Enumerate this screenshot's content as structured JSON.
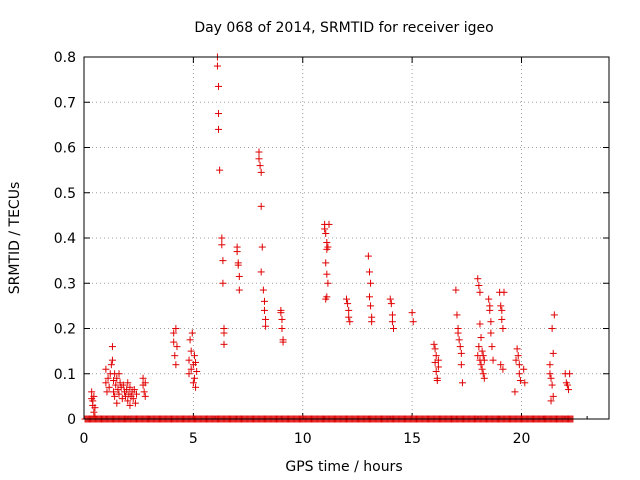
{
  "chart_data": {
    "type": "scatter",
    "title": "Day 068 of 2014, SRMTID for receiver igeo",
    "xlabel": "GPS time / hours",
    "ylabel": "SRMTID / TECUs",
    "xlim": [
      0,
      24
    ],
    "ylim": [
      0,
      0.8
    ],
    "xticks": [
      0,
      5,
      10,
      15,
      20
    ],
    "yticks": [
      0,
      0.1,
      0.2,
      0.3,
      0.4,
      0.5,
      0.6,
      0.7,
      0.8
    ],
    "xtick_labels": [
      "0",
      "5",
      "10",
      "15",
      "20"
    ],
    "ytick_labels": [
      "0",
      "0.1",
      "0.2",
      "0.3",
      "0.4",
      "0.5",
      "0.6",
      "0.7",
      "0.8"
    ],
    "grid": true,
    "marker": "+",
    "color": "#e00000",
    "series": [
      {
        "name": "SRMTID",
        "points": [
          [
            0.35,
            0.06
          ],
          [
            0.35,
            0.045
          ],
          [
            0.4,
            0.03
          ],
          [
            0.45,
            0.015
          ],
          [
            0.4,
            0.04
          ],
          [
            0.5,
            0.025
          ],
          [
            0.5,
            0.005
          ],
          [
            0.45,
            0.05
          ],
          [
            1.0,
            0.11
          ],
          [
            1.0,
            0.08
          ],
          [
            1.05,
            0.06
          ],
          [
            1.1,
            0.09
          ],
          [
            1.15,
            0.07
          ],
          [
            1.2,
            0.1
          ],
          [
            1.25,
            0.12
          ],
          [
            1.3,
            0.16
          ],
          [
            1.3,
            0.13
          ],
          [
            1.35,
            0.085
          ],
          [
            1.35,
            0.06
          ],
          [
            1.4,
            0.1
          ],
          [
            1.4,
            0.05
          ],
          [
            1.45,
            0.075
          ],
          [
            1.5,
            0.09
          ],
          [
            1.5,
            0.035
          ],
          [
            1.55,
            0.065
          ],
          [
            1.6,
            0.1
          ],
          [
            1.6,
            0.055
          ],
          [
            1.65,
            0.08
          ],
          [
            1.7,
            0.07
          ],
          [
            1.75,
            0.045
          ],
          [
            1.8,
            0.075
          ],
          [
            1.85,
            0.06
          ],
          [
            1.9,
            0.05
          ],
          [
            1.95,
            0.065
          ],
          [
            2.0,
            0.04
          ],
          [
            2.0,
            0.08
          ],
          [
            2.05,
            0.055
          ],
          [
            2.1,
            0.07
          ],
          [
            2.1,
            0.03
          ],
          [
            2.15,
            0.05
          ],
          [
            2.2,
            0.06
          ],
          [
            2.25,
            0.045
          ],
          [
            2.3,
            0.065
          ],
          [
            2.35,
            0.035
          ],
          [
            2.4,
            0.055
          ],
          [
            2.7,
            0.09
          ],
          [
            2.7,
            0.075
          ],
          [
            2.75,
            0.06
          ],
          [
            2.8,
            0.08
          ],
          [
            2.8,
            0.05
          ],
          [
            4.1,
            0.19
          ],
          [
            4.1,
            0.17
          ],
          [
            4.15,
            0.14
          ],
          [
            4.2,
            0.2
          ],
          [
            4.2,
            0.12
          ],
          [
            4.25,
            0.16
          ],
          [
            4.8,
            0.13
          ],
          [
            4.8,
            0.1
          ],
          [
            4.85,
            0.175
          ],
          [
            4.9,
            0.15
          ],
          [
            4.9,
            0.11
          ],
          [
            4.95,
            0.19
          ],
          [
            5.0,
            0.12
          ],
          [
            5.0,
            0.08
          ],
          [
            5.05,
            0.14
          ],
          [
            5.05,
            0.09
          ],
          [
            5.1,
            0.125
          ],
          [
            5.1,
            0.07
          ],
          [
            5.15,
            0.105
          ],
          [
            6.1,
            0.8
          ],
          [
            6.1,
            0.78
          ],
          [
            6.15,
            0.735
          ],
          [
            6.15,
            0.675
          ],
          [
            6.15,
            0.64
          ],
          [
            6.2,
            0.55
          ],
          [
            6.3,
            0.4
          ],
          [
            6.3,
            0.385
          ],
          [
            6.35,
            0.35
          ],
          [
            6.35,
            0.3
          ],
          [
            6.4,
            0.2
          ],
          [
            6.4,
            0.19
          ],
          [
            6.4,
            0.165
          ],
          [
            7.0,
            0.38
          ],
          [
            7.0,
            0.37
          ],
          [
            7.05,
            0.345
          ],
          [
            7.05,
            0.34
          ],
          [
            7.1,
            0.315
          ],
          [
            7.1,
            0.285
          ],
          [
            8.0,
            0.59
          ],
          [
            8.0,
            0.575
          ],
          [
            8.05,
            0.56
          ],
          [
            8.1,
            0.545
          ],
          [
            8.1,
            0.47
          ],
          [
            8.15,
            0.38
          ],
          [
            8.1,
            0.325
          ],
          [
            8.2,
            0.285
          ],
          [
            8.25,
            0.26
          ],
          [
            8.25,
            0.24
          ],
          [
            8.3,
            0.22
          ],
          [
            8.3,
            0.205
          ],
          [
            9.0,
            0.24
          ],
          [
            9.0,
            0.235
          ],
          [
            9.05,
            0.22
          ],
          [
            9.05,
            0.2
          ],
          [
            9.1,
            0.175
          ],
          [
            9.1,
            0.17
          ],
          [
            11.0,
            0.43
          ],
          [
            11.0,
            0.42
          ],
          [
            11.05,
            0.41
          ],
          [
            11.1,
            0.39
          ],
          [
            11.1,
            0.375
          ],
          [
            11.15,
            0.38
          ],
          [
            11.05,
            0.345
          ],
          [
            11.1,
            0.32
          ],
          [
            11.15,
            0.3
          ],
          [
            11.1,
            0.27
          ],
          [
            11.05,
            0.265
          ],
          [
            11.2,
            0.43
          ],
          [
            12.0,
            0.265
          ],
          [
            12.05,
            0.255
          ],
          [
            12.1,
            0.24
          ],
          [
            12.1,
            0.225
          ],
          [
            12.15,
            0.215
          ],
          [
            13.0,
            0.36
          ],
          [
            13.05,
            0.325
          ],
          [
            13.1,
            0.3
          ],
          [
            13.05,
            0.27
          ],
          [
            13.1,
            0.25
          ],
          [
            13.15,
            0.225
          ],
          [
            13.15,
            0.215
          ],
          [
            14.0,
            0.265
          ],
          [
            14.05,
            0.255
          ],
          [
            14.1,
            0.23
          ],
          [
            14.1,
            0.215
          ],
          [
            14.15,
            0.2
          ],
          [
            15.0,
            0.235
          ],
          [
            15.05,
            0.215
          ],
          [
            16.0,
            0.165
          ],
          [
            16.05,
            0.155
          ],
          [
            16.1,
            0.14
          ],
          [
            16.05,
            0.125
          ],
          [
            16.1,
            0.105
          ],
          [
            16.15,
            0.09
          ],
          [
            16.15,
            0.085
          ],
          [
            16.2,
            0.13
          ],
          [
            16.2,
            0.115
          ],
          [
            17.0,
            0.285
          ],
          [
            17.05,
            0.23
          ],
          [
            17.1,
            0.2
          ],
          [
            17.1,
            0.19
          ],
          [
            17.15,
            0.175
          ],
          [
            17.2,
            0.16
          ],
          [
            17.25,
            0.145
          ],
          [
            17.25,
            0.12
          ],
          [
            17.3,
            0.08
          ],
          [
            18.0,
            0.31
          ],
          [
            18.05,
            0.295
          ],
          [
            18.1,
            0.28
          ],
          [
            18.1,
            0.21
          ],
          [
            18.15,
            0.18
          ],
          [
            18.05,
            0.16
          ],
          [
            18.2,
            0.15
          ],
          [
            18.0,
            0.14
          ],
          [
            18.1,
            0.13
          ],
          [
            18.15,
            0.12
          ],
          [
            18.2,
            0.11
          ],
          [
            18.25,
            0.1
          ],
          [
            18.3,
            0.09
          ],
          [
            18.3,
            0.13
          ],
          [
            18.25,
            0.14
          ],
          [
            18.5,
            0.265
          ],
          [
            18.55,
            0.25
          ],
          [
            18.55,
            0.24
          ],
          [
            18.6,
            0.215
          ],
          [
            18.6,
            0.19
          ],
          [
            18.65,
            0.16
          ],
          [
            18.7,
            0.13
          ],
          [
            19.0,
            0.28
          ],
          [
            19.05,
            0.25
          ],
          [
            19.1,
            0.24
          ],
          [
            19.1,
            0.22
          ],
          [
            19.15,
            0.2
          ],
          [
            19.2,
            0.28
          ],
          [
            19.05,
            0.12
          ],
          [
            19.15,
            0.11
          ],
          [
            19.8,
            0.155
          ],
          [
            19.85,
            0.14
          ],
          [
            19.9,
            0.12
          ],
          [
            19.9,
            0.1
          ],
          [
            19.95,
            0.085
          ],
          [
            19.75,
            0.13
          ],
          [
            19.7,
            0.06
          ],
          [
            20.1,
            0.11
          ],
          [
            20.15,
            0.08
          ],
          [
            21.3,
            0.12
          ],
          [
            21.3,
            0.1
          ],
          [
            21.35,
            0.09
          ],
          [
            21.4,
            0.2
          ],
          [
            21.4,
            0.075
          ],
          [
            21.45,
            0.05
          ],
          [
            21.5,
            0.23
          ],
          [
            21.45,
            0.145
          ],
          [
            21.35,
            0.04
          ],
          [
            22.0,
            0.1
          ],
          [
            22.05,
            0.08
          ],
          [
            22.1,
            0.075
          ],
          [
            22.15,
            0.065
          ],
          [
            22.2,
            0.1
          ]
        ]
      }
    ],
    "zero_coverage_ranges": [
      [
        0.05,
        22.35
      ]
    ]
  }
}
